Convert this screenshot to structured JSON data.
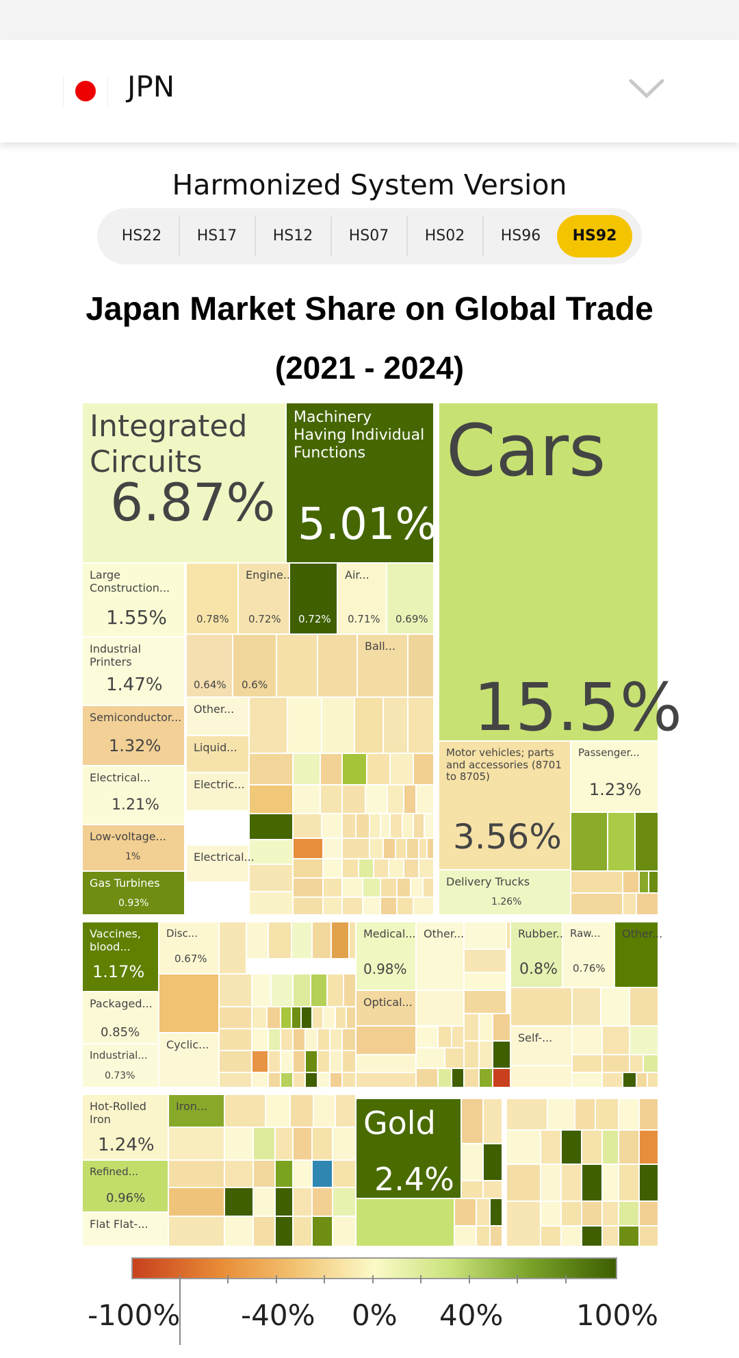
{
  "country": {
    "code": "JPN",
    "flag_icon": "japan-flag-icon"
  },
  "hs": {
    "title": "Harmonized System Version",
    "versions": [
      "HS22",
      "HS17",
      "HS12",
      "HS07",
      "HS02",
      "HS96",
      "HS92"
    ],
    "active": "HS92"
  },
  "chart_data": {
    "type": "treemap",
    "title": "Japan Market Share on Global Trade",
    "subtitle": "(2021 - 2024)",
    "nodes": [
      {
        "label": "Integrated Circuits",
        "value": "6.87%"
      },
      {
        "label": "Machinery Having Individual Functions",
        "value": "5.01%"
      },
      {
        "label": "Cars",
        "value": "15.5%"
      },
      {
        "label": "Large Construction...",
        "value": "1.55%"
      },
      {
        "label": "",
        "value": "0.78%"
      },
      {
        "label": "Engine...",
        "value": "0.72%"
      },
      {
        "label": "",
        "value": "0.72%"
      },
      {
        "label": "Air...",
        "value": "0.71%"
      },
      {
        "label": "",
        "value": "0.69%"
      },
      {
        "label": "Industrial Printers",
        "value": "1.47%"
      },
      {
        "label": "",
        "value": "0.64%"
      },
      {
        "label": "",
        "value": "0.6%"
      },
      {
        "label": "Ball...",
        "value": ""
      },
      {
        "label": "Semiconductor...",
        "value": "1.32%"
      },
      {
        "label": "Other...",
        "value": ""
      },
      {
        "label": "Liquid...",
        "value": ""
      },
      {
        "label": "Electrical...",
        "value": "1.21%"
      },
      {
        "label": "Electric...",
        "value": ""
      },
      {
        "label": "Low-voltage...",
        "value": "1%"
      },
      {
        "label": "Electrical...",
        "value": ""
      },
      {
        "label": "Gas Turbines",
        "value": "0.93%"
      },
      {
        "label": "Motor vehicles; parts and accessories (8701 to 8705)",
        "value": "3.56%"
      },
      {
        "label": "Passenger...",
        "value": "1.23%"
      },
      {
        "label": "Delivery Trucks",
        "value": "1.26%"
      },
      {
        "label": "Vaccines, blood...",
        "value": "1.17%"
      },
      {
        "label": "Disc...",
        "value": "0.67%"
      },
      {
        "label": "Packaged...",
        "value": "0.85%"
      },
      {
        "label": "Industrial...",
        "value": "0.73%"
      },
      {
        "label": "Cyclic...",
        "value": ""
      },
      {
        "label": "Medical...",
        "value": "0.98%"
      },
      {
        "label": "Other...",
        "value": ""
      },
      {
        "label": "Optical...",
        "value": ""
      },
      {
        "label": "Rubber...",
        "value": "0.8%"
      },
      {
        "label": "Raw...",
        "value": "0.76%"
      },
      {
        "label": "Other...",
        "value": ""
      },
      {
        "label": "Self-...",
        "value": ""
      },
      {
        "label": "Hot-Rolled Iron",
        "value": "1.24%"
      },
      {
        "label": "Iron...",
        "value": ""
      },
      {
        "label": "Refined...",
        "value": "0.96%"
      },
      {
        "label": "Flat Flat-...",
        "value": ""
      },
      {
        "label": "Gold",
        "value": "2.4%"
      }
    ],
    "color_scale": {
      "ticks": [
        "-100%",
        "-40%",
        "0%",
        "40%",
        "100%"
      ],
      "min_color": "#c8401e",
      "mid_color": "#fbfac8",
      "max_color": "#3d5e00"
    }
  }
}
